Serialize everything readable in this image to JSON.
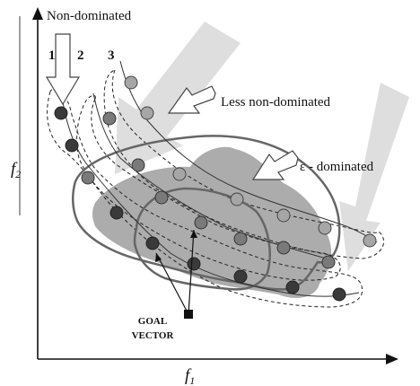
{
  "labels": {
    "non_dominated": "Non-dominated",
    "less_non_dominated": "Less non-dominated",
    "eps_dominated": "ε - dominated",
    "front_1": "1",
    "front_2": "2",
    "front_3": "3",
    "goal_line1": "GOAL",
    "goal_line2": "VECTOR",
    "axis_x": "f",
    "axis_x_sub": "1",
    "axis_y": "f",
    "axis_y_sub": "2"
  },
  "colors": {
    "front1_point": "#3a3a3a",
    "front2_point": "#7a7a7a",
    "front3_point": "#a6a6a6",
    "shaded_region": "#a3a3a3",
    "arrow_band": "#d8d8d8",
    "boundary": "#666666"
  }
}
